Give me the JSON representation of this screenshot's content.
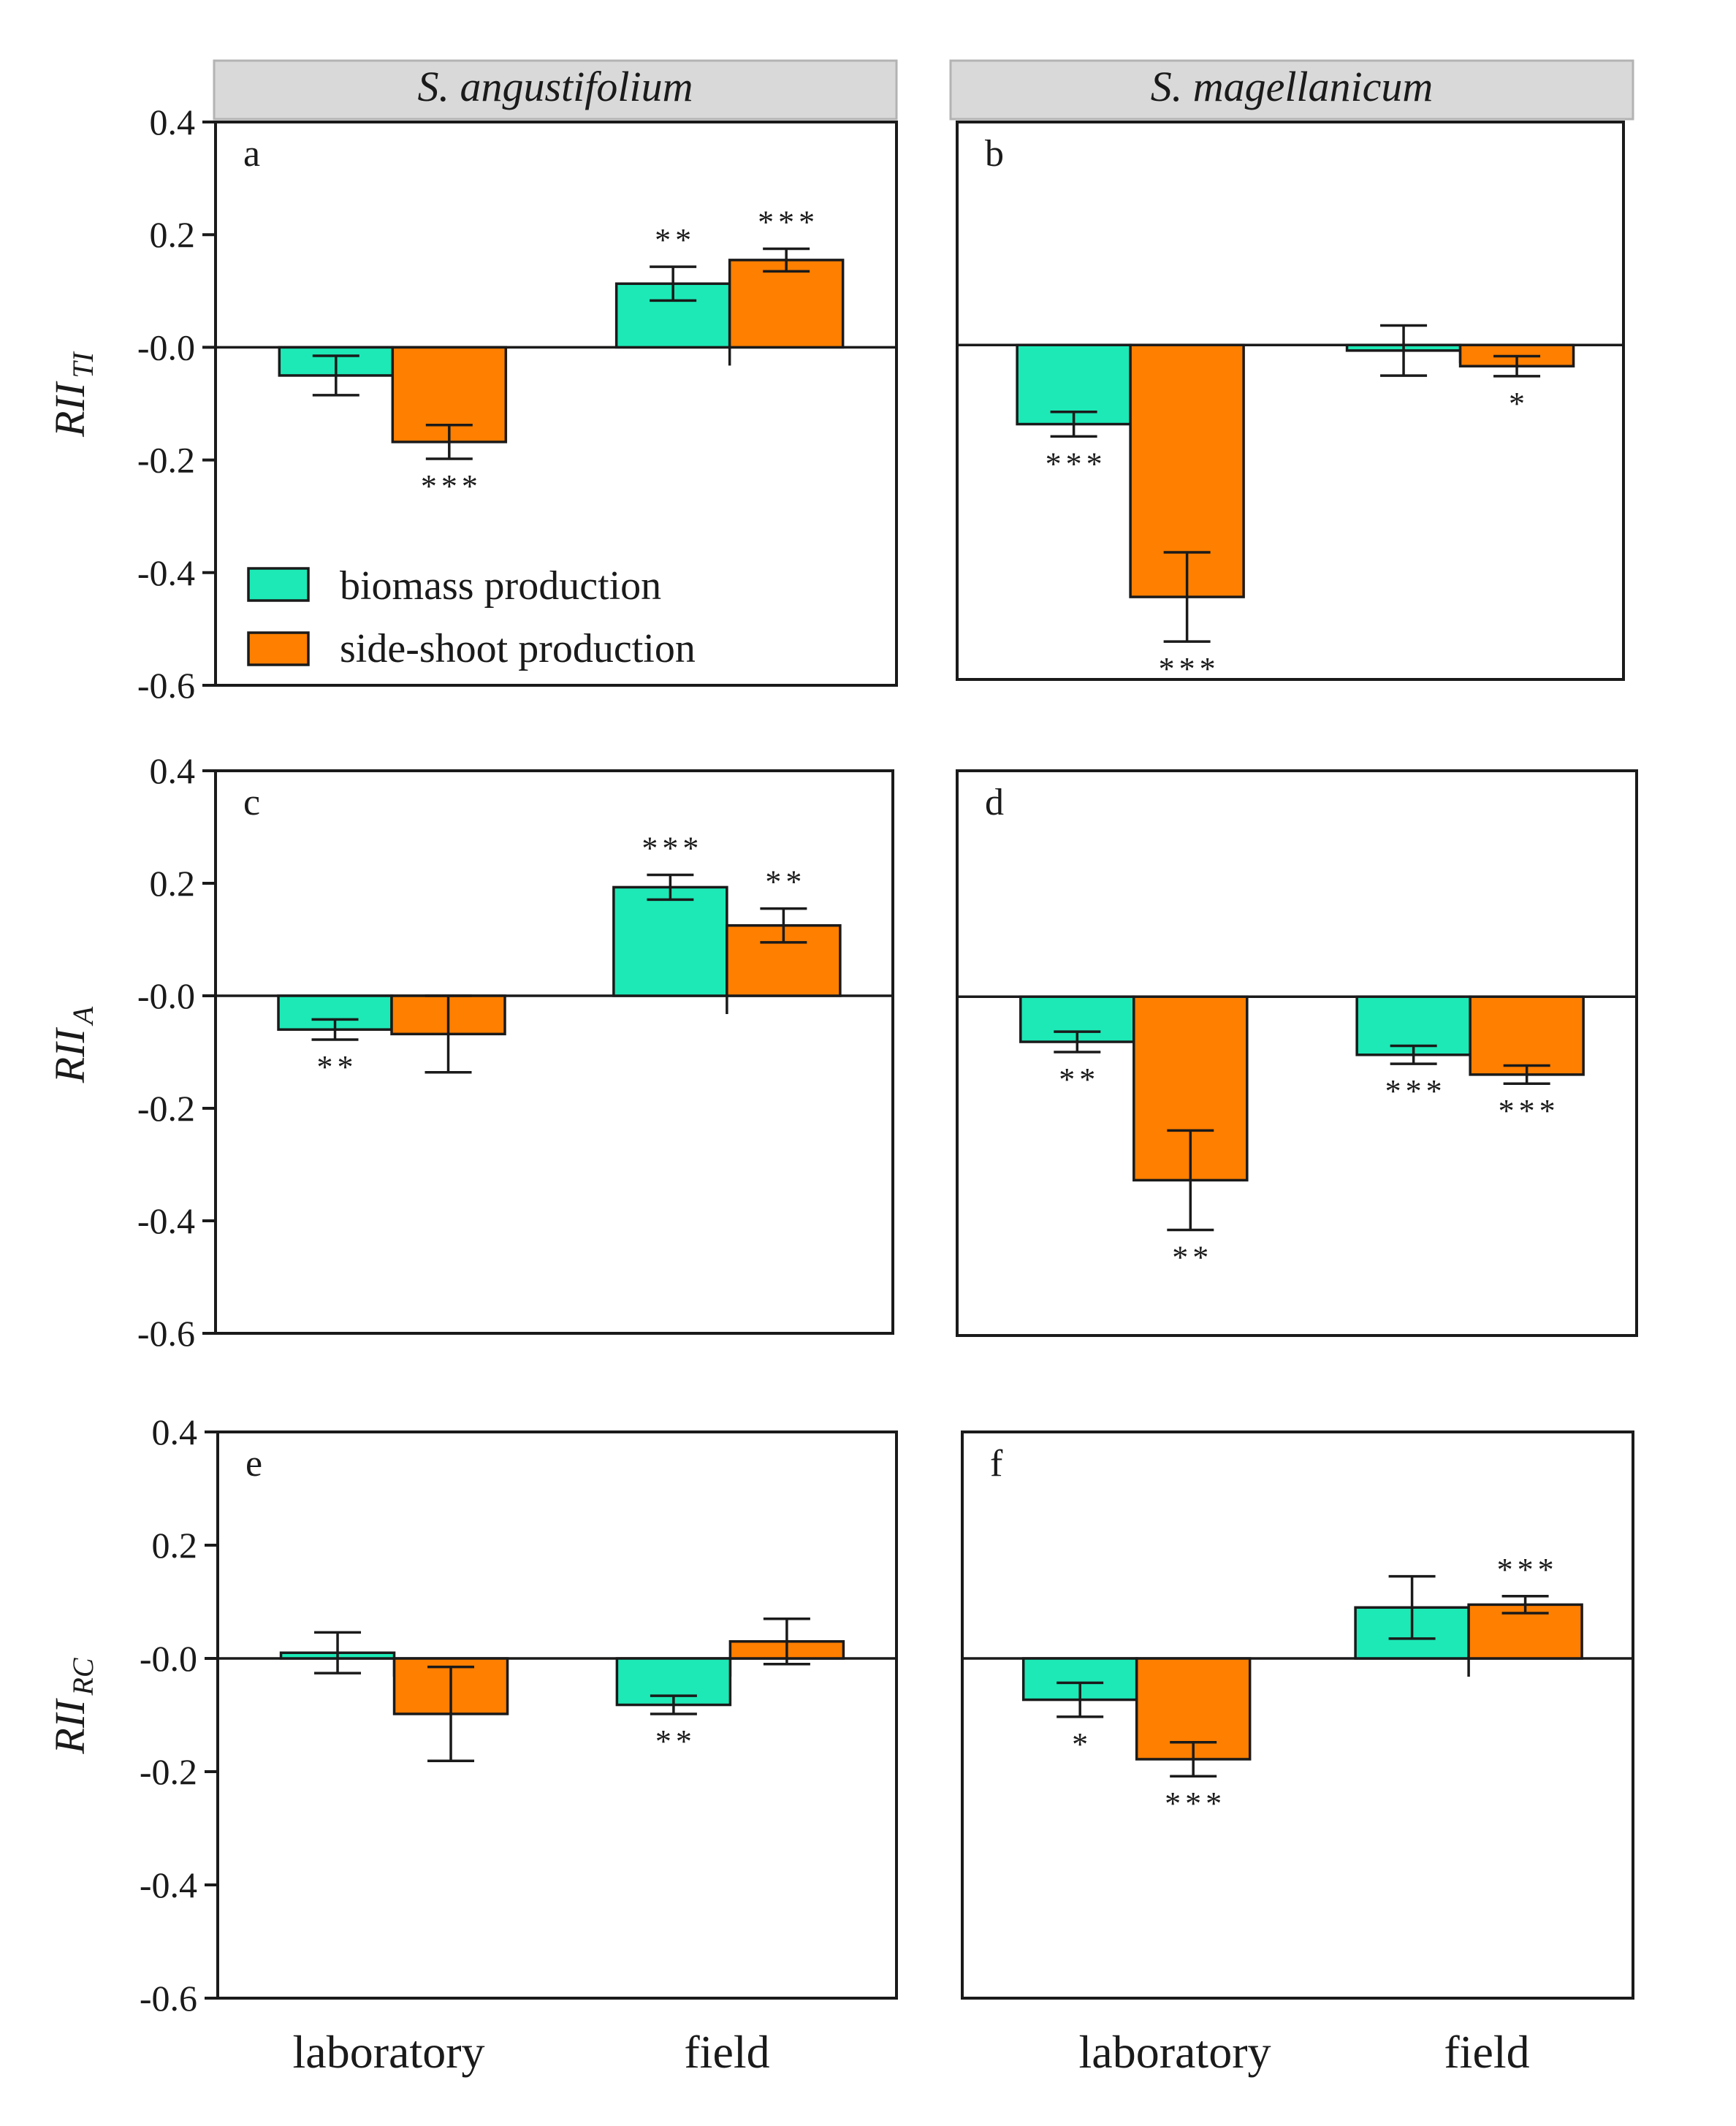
{
  "headers": {
    "left": "S. angustifolium",
    "right": "S. magellanicum"
  },
  "y_axis_labels": {
    "row1": {
      "main": "RII",
      "sub": "TI"
    },
    "row2": {
      "main": "RII",
      "sub": "A"
    },
    "row3": {
      "main": "RII",
      "sub": "RC"
    }
  },
  "y_ticks": [
    "0.4",
    "0.2",
    "-0.0",
    "-0.2",
    "-0.4",
    "-0.6"
  ],
  "x_categories": {
    "left": [
      "laboratory",
      "field"
    ],
    "right": [
      "laboratory",
      "field"
    ]
  },
  "legend": {
    "biomass": "biomass production",
    "sideshoot": "side-shoot production"
  },
  "colors": {
    "biomass": "#1de9b6",
    "sideshoot": "#ff7f00",
    "header_bg": "#d9d9d9"
  },
  "chart_data": [
    {
      "type": "bar",
      "panel": "a",
      "title": "S. angustifolium",
      "ylabel": "RII TI",
      "categories": [
        "laboratory",
        "field"
      ],
      "ylim": [
        -0.6,
        0.4
      ],
      "series": [
        {
          "name": "biomass production",
          "values": [
            -0.05,
            0.113
          ],
          "errors": [
            0.035,
            0.03
          ],
          "sig": [
            "",
            "**"
          ]
        },
        {
          "name": "side-shoot production",
          "values": [
            -0.168,
            0.155
          ],
          "errors": [
            0.03,
            0.02
          ],
          "sig": [
            "***",
            "***"
          ]
        }
      ]
    },
    {
      "type": "bar",
      "panel": "b",
      "title": "S. magellanicum",
      "ylabel": "RII TI",
      "categories": [
        "laboratory",
        "field"
      ],
      "ylim": [
        -0.6,
        0.4
      ],
      "series": [
        {
          "name": "biomass production",
          "values": [
            -0.142,
            -0.01
          ],
          "errors": [
            0.022,
            0.045
          ],
          "sig": [
            "***",
            ""
          ]
        },
        {
          "name": "side-shoot production",
          "values": [
            -0.452,
            -0.038
          ],
          "errors": [
            0.08,
            0.018
          ],
          "sig": [
            "***",
            "*"
          ]
        }
      ]
    },
    {
      "type": "bar",
      "panel": "c",
      "title": "S. angustifolium",
      "ylabel": "RII A",
      "categories": [
        "laboratory",
        "field"
      ],
      "ylim": [
        -0.6,
        0.4
      ],
      "series": [
        {
          "name": "biomass production",
          "values": [
            -0.06,
            0.193
          ],
          "errors": [
            0.018,
            0.022
          ],
          "sig": [
            "**",
            "***"
          ]
        },
        {
          "name": "side-shoot production",
          "values": [
            -0.068,
            0.125
          ],
          "errors": [
            0.068,
            0.03
          ],
          "sig": [
            "",
            "**"
          ]
        }
      ]
    },
    {
      "type": "bar",
      "panel": "d",
      "title": "S. magellanicum",
      "ylabel": "RII A",
      "categories": [
        "laboratory",
        "field"
      ],
      "ylim": [
        -0.6,
        0.4
      ],
      "series": [
        {
          "name": "biomass production",
          "values": [
            -0.08,
            -0.103
          ],
          "errors": [
            0.018,
            0.016
          ],
          "sig": [
            "**",
            "***"
          ]
        },
        {
          "name": "side-shoot production",
          "values": [
            -0.325,
            -0.138
          ],
          "errors": [
            0.088,
            0.016
          ],
          "sig": [
            "**",
            "***"
          ]
        }
      ]
    },
    {
      "type": "bar",
      "panel": "e",
      "title": "S. angustifolium",
      "ylabel": "RII RC",
      "categories": [
        "laboratory",
        "field"
      ],
      "ylim": [
        -0.6,
        0.4
      ],
      "series": [
        {
          "name": "biomass production",
          "values": [
            0.01,
            -0.082
          ],
          "errors": [
            0.036,
            0.016
          ],
          "sig": [
            "",
            "**"
          ]
        },
        {
          "name": "side-shoot production",
          "values": [
            -0.098,
            0.03
          ],
          "errors": [
            0.083,
            0.04
          ],
          "sig": [
            "",
            ""
          ]
        }
      ]
    },
    {
      "type": "bar",
      "panel": "f",
      "title": "S. magellanicum",
      "ylabel": "RII RC",
      "categories": [
        "laboratory",
        "field"
      ],
      "ylim": [
        -0.6,
        0.4
      ],
      "series": [
        {
          "name": "biomass production",
          "values": [
            -0.073,
            0.09
          ],
          "errors": [
            0.03,
            0.055
          ],
          "sig": [
            "*",
            ""
          ]
        },
        {
          "name": "side-shoot production",
          "values": [
            -0.178,
            0.095
          ],
          "errors": [
            0.03,
            0.015
          ],
          "sig": [
            "***",
            "***"
          ]
        }
      ]
    }
  ]
}
